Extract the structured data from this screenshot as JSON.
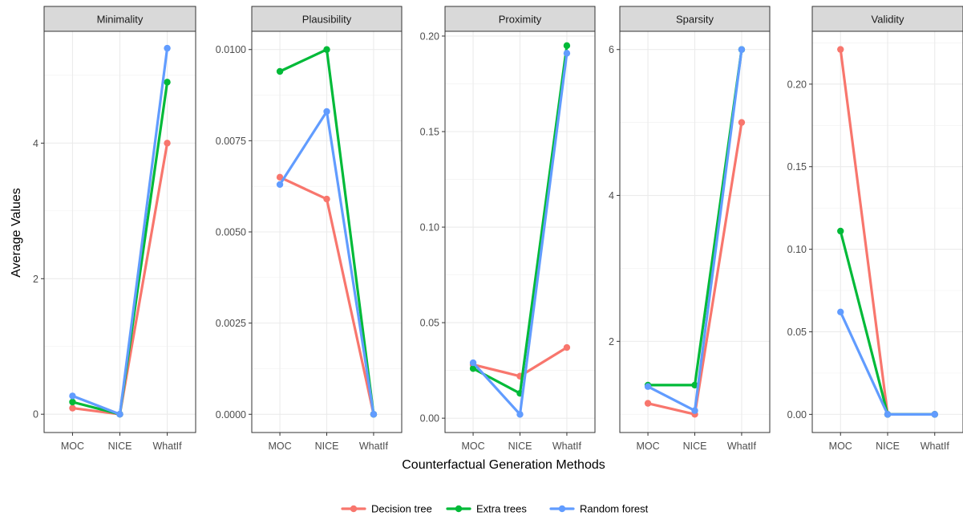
{
  "chart_data": {
    "type": "line",
    "xlabel": "Counterfactual Generation Methods",
    "ylabel": "Average Values",
    "categories": [
      "MOC",
      "NICE",
      "WhatIf"
    ],
    "legend": {
      "placement": "bottom",
      "entries": [
        "Decision tree",
        "Extra trees",
        "Random forest"
      ]
    },
    "series_colors": {
      "Decision tree": "#F8766D",
      "Extra trees": "#00BA38",
      "Random forest": "#619CFF"
    },
    "strip_color": "#D9D9D9",
    "grid": true,
    "panels": [
      {
        "title": "Minimality",
        "ylim": [
          -0.27,
          5.65
        ],
        "y_ticks": [
          0,
          2,
          4
        ],
        "y_tick_labels": [
          "0",
          "2",
          "4"
        ],
        "series": [
          {
            "name": "Decision tree",
            "values": [
              0.09,
              0.0,
              4.0
            ]
          },
          {
            "name": "Extra trees",
            "values": [
              0.18,
              0.0,
              4.9
            ]
          },
          {
            "name": "Random forest",
            "values": [
              0.27,
              0.0,
              5.4
            ]
          }
        ]
      },
      {
        "title": "Plausibility",
        "ylim": [
          -0.0005,
          0.0105
        ],
        "y_ticks": [
          0,
          0.0025,
          0.005,
          0.0075,
          0.01
        ],
        "y_tick_labels": [
          "0.0000",
          "0.0025",
          "0.0050",
          "0.0075",
          "0.0100"
        ],
        "series": [
          {
            "name": "Decision tree",
            "values": [
              0.0065,
              0.0059,
              0.0
            ]
          },
          {
            "name": "Extra trees",
            "values": [
              0.0094,
              0.01,
              0.0
            ]
          },
          {
            "name": "Random forest",
            "values": [
              0.0063,
              0.0083,
              0.0
            ]
          }
        ]
      },
      {
        "title": "Proximity",
        "ylim": [
          -0.0075,
          0.2025
        ],
        "y_ticks": [
          0,
          0.05,
          0.1,
          0.15,
          0.2
        ],
        "y_tick_labels": [
          "0.00",
          "0.05",
          "0.10",
          "0.15",
          "0.20"
        ],
        "series": [
          {
            "name": "Decision tree",
            "values": [
              0.028,
              0.022,
              0.037
            ]
          },
          {
            "name": "Extra trees",
            "values": [
              0.026,
              0.013,
              0.195
            ]
          },
          {
            "name": "Random forest",
            "values": [
              0.029,
              0.002,
              0.191
            ]
          }
        ]
      },
      {
        "title": "Sparsity",
        "ylim": [
          0.75,
          6.25
        ],
        "y_ticks": [
          2,
          4,
          6
        ],
        "y_tick_labels": [
          "2",
          "4",
          "6"
        ],
        "series": [
          {
            "name": "Decision tree",
            "values": [
              1.15,
              1.0,
              5.0
            ]
          },
          {
            "name": "Extra trees",
            "values": [
              1.4,
              1.4,
              6.0
            ]
          },
          {
            "name": "Random forest",
            "values": [
              1.38,
              1.05,
              6.0
            ]
          }
        ]
      },
      {
        "title": "Validity",
        "ylim": [
          -0.011,
          0.232
        ],
        "y_ticks": [
          0,
          0.05,
          0.1,
          0.15,
          0.2
        ],
        "y_tick_labels": [
          "0.00",
          "0.05",
          "0.10",
          "0.15",
          "0.20"
        ],
        "series": [
          {
            "name": "Decision tree",
            "values": [
              0.221,
              0.0,
              0.0
            ]
          },
          {
            "name": "Extra trees",
            "values": [
              0.111,
              0.0,
              0.0
            ]
          },
          {
            "name": "Random forest",
            "values": [
              0.062,
              0.0,
              0.0
            ]
          }
        ]
      }
    ]
  }
}
